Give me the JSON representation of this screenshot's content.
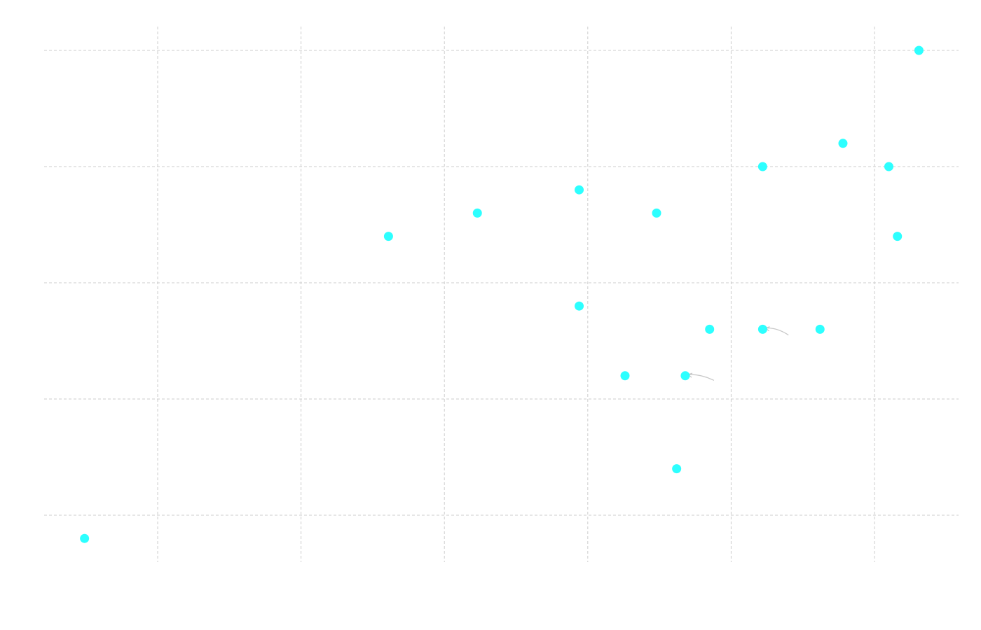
{
  "chart_data": {
    "type": "scatter",
    "title": "",
    "xlabel": "",
    "ylabel": "",
    "grid": true,
    "legend": "none",
    "xlim": [
      0.2,
      6.6
    ],
    "ylim": [
      -0.4,
      4.2
    ],
    "x_gridlines": [
      1,
      2,
      3,
      4,
      5,
      6
    ],
    "y_gridlines": [
      0,
      1,
      2,
      3,
      4
    ],
    "point_color": "#22ffff",
    "series": [
      {
        "points": [
          {
            "x": 0.49,
            "y": -0.2
          },
          {
            "x": 2.61,
            "y": 2.4
          },
          {
            "x": 3.23,
            "y": 2.6
          },
          {
            "x": 3.94,
            "y": 2.8
          },
          {
            "x": 3.94,
            "y": 1.8
          },
          {
            "x": 4.26,
            "y": 1.2
          },
          {
            "x": 4.48,
            "y": 2.6
          },
          {
            "x": 4.62,
            "y": 0.4
          },
          {
            "x": 4.68,
            "y": 1.2
          },
          {
            "x": 4.85,
            "y": 1.6
          },
          {
            "x": 5.22,
            "y": 3.0
          },
          {
            "x": 5.22,
            "y": 1.6
          },
          {
            "x": 5.62,
            "y": 1.6
          },
          {
            "x": 5.78,
            "y": 3.2
          },
          {
            "x": 6.1,
            "y": 3.0
          },
          {
            "x": 6.16,
            "y": 2.4
          },
          {
            "x": 6.31,
            "y": 4.0
          }
        ]
      }
    ],
    "annotations": [
      {
        "type": "arrow",
        "from": {
          "x": 5.4,
          "y": 1.55
        },
        "to": {
          "x": 5.24,
          "y": 1.61
        }
      },
      {
        "type": "arrow",
        "from": {
          "x": 4.88,
          "y": 1.16
        },
        "to": {
          "x": 4.7,
          "y": 1.21
        }
      }
    ]
  }
}
